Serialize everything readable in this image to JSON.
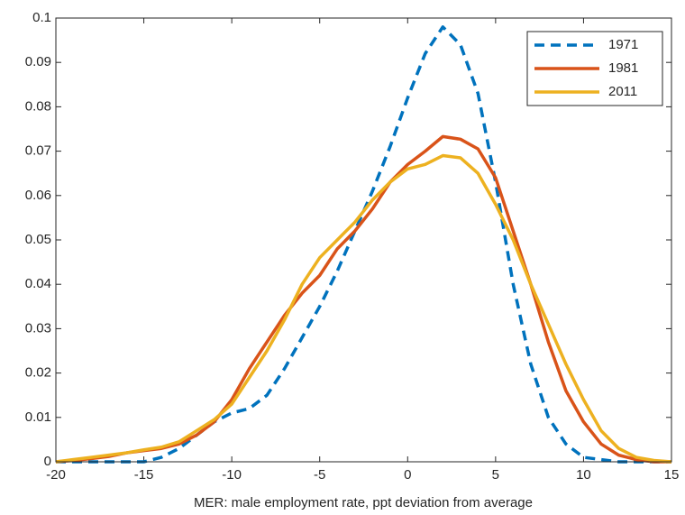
{
  "chart_data": {
    "type": "line",
    "xlabel": "MER: male employment rate, ppt deviation from average",
    "x": [
      -20,
      -19,
      -18,
      -17,
      -16,
      -15,
      -14,
      -13,
      -12,
      -11,
      -10,
      -9,
      -8,
      -7,
      -6,
      -5,
      -4,
      -3,
      -2,
      -1,
      0,
      1,
      2,
      3,
      4,
      5,
      6,
      7,
      8,
      9,
      10,
      11,
      12,
      13,
      14,
      15
    ],
    "series": [
      {
        "name": "1971",
        "color": "#0072bd",
        "line_style": "dashed",
        "values": [
          0,
          0,
          0,
          0,
          0,
          0,
          0.001,
          0.003,
          0.006,
          0.009,
          0.011,
          0.012,
          0.015,
          0.021,
          0.028,
          0.035,
          0.043,
          0.052,
          0.061,
          0.071,
          0.082,
          0.092,
          0.098,
          0.094,
          0.083,
          0.063,
          0.04,
          0.022,
          0.01,
          0.004,
          0.001,
          0.0005,
          0,
          0,
          0,
          0
        ]
      },
      {
        "name": "1981",
        "color": "#d95319",
        "line_style": "solid",
        "values": [
          0,
          0.0003,
          0.0007,
          0.0012,
          0.002,
          0.0025,
          0.003,
          0.004,
          0.006,
          0.009,
          0.014,
          0.021,
          0.027,
          0.033,
          0.038,
          0.042,
          0.048,
          0.052,
          0.057,
          0.063,
          0.067,
          0.07,
          0.0733,
          0.0727,
          0.0705,
          0.064,
          0.052,
          0.04,
          0.027,
          0.016,
          0.009,
          0.004,
          0.0015,
          0.0005,
          0,
          0
        ]
      },
      {
        "name": "2011",
        "color": "#edb120",
        "line_style": "solid",
        "values": [
          0,
          0.0005,
          0.001,
          0.0015,
          0.002,
          0.0027,
          0.0033,
          0.0045,
          0.007,
          0.0095,
          0.013,
          0.019,
          0.025,
          0.032,
          0.04,
          0.046,
          0.05,
          0.054,
          0.059,
          0.063,
          0.066,
          0.067,
          0.069,
          0.0685,
          0.065,
          0.058,
          0.05,
          0.04,
          0.031,
          0.022,
          0.014,
          0.007,
          0.003,
          0.001,
          0.0003,
          0
        ]
      }
    ],
    "xlim": [
      -20,
      15
    ],
    "xticks": [
      -20,
      -15,
      -10,
      -5,
      0,
      5,
      10,
      15
    ],
    "ylim": [
      0,
      0.1
    ],
    "yticks": [
      0,
      0.01,
      0.02,
      0.03,
      0.04,
      0.05,
      0.06,
      0.07,
      0.08,
      0.09,
      0.1
    ],
    "legend": "upper right"
  }
}
